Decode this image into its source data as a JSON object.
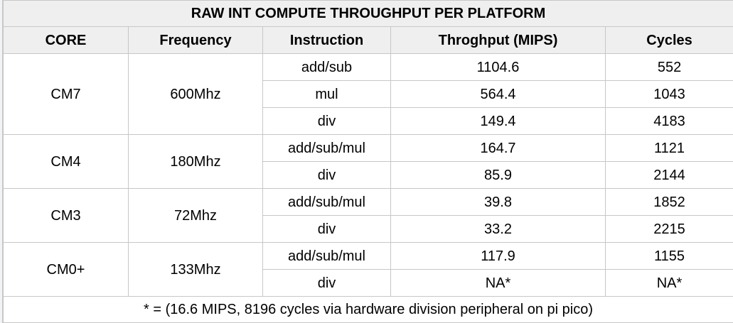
{
  "table": {
    "title": "RAW INT COMPUTE THROUGHPUT PER PLATFORM",
    "headers": [
      "CORE",
      "Frequency",
      "Instruction",
      "Throghput (MIPS)",
      "Cycles"
    ],
    "groups": [
      {
        "core": "CM7",
        "frequency": "600Mhz",
        "rows": [
          {
            "instruction": "add/sub",
            "throughput": "1104.6",
            "cycles": "552"
          },
          {
            "instruction": "mul",
            "throughput": "564.4",
            "cycles": "1043"
          },
          {
            "instruction": "div",
            "throughput": "149.4",
            "cycles": "4183"
          }
        ]
      },
      {
        "core": "CM4",
        "frequency": "180Mhz",
        "rows": [
          {
            "instruction": "add/sub/mul",
            "throughput": "164.7",
            "cycles": "1121"
          },
          {
            "instruction": "div",
            "throughput": "85.9",
            "cycles": "2144"
          }
        ]
      },
      {
        "core": "CM3",
        "frequency": "72Mhz",
        "rows": [
          {
            "instruction": "add/sub/mul",
            "throughput": "39.8",
            "cycles": "1852"
          },
          {
            "instruction": "div",
            "throughput": "33.2",
            "cycles": "2215"
          }
        ]
      },
      {
        "core": "CM0+",
        "frequency": "133Mhz",
        "rows": [
          {
            "instruction": "add/sub/mul",
            "throughput": "117.9",
            "cycles": "1155"
          },
          {
            "instruction": "div",
            "throughput": "NA*",
            "cycles": "NA*"
          }
        ]
      }
    ],
    "footnote": "* = (16.6 MIPS, 8196 cycles via hardware division peripheral on pi pico)"
  },
  "colors": {
    "header_background": "#efefef",
    "grid_line": "#c7c7c7",
    "text": "#000000"
  }
}
